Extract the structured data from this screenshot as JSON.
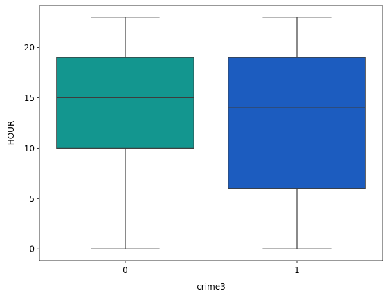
{
  "chart_data": {
    "type": "box",
    "title": "",
    "xlabel": "crime3",
    "ylabel": "HOUR",
    "categories": [
      "0",
      "1"
    ],
    "ylim": [
      -1.15,
      24.15
    ],
    "yticks": [
      0,
      5,
      10,
      15,
      20
    ],
    "ytick_labels": [
      "0",
      "5",
      "10",
      "15",
      "20"
    ],
    "boxes": [
      {
        "category": "0",
        "min": 0,
        "q1": 10,
        "median": 15,
        "q3": 19,
        "max": 23,
        "color": "#13968f"
      },
      {
        "category": "1",
        "min": 0,
        "q1": 6,
        "median": 14,
        "q3": 19,
        "max": 23,
        "color": "#1c5cbf"
      }
    ],
    "grid": false,
    "legend": "none",
    "line_color": "#3d3d3d"
  }
}
